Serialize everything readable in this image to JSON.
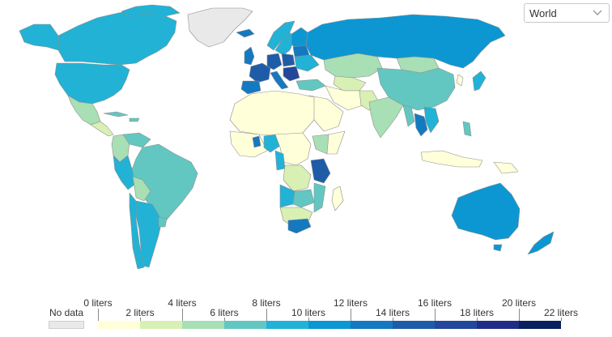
{
  "region_select": {
    "value": "World"
  },
  "legend": {
    "no_data_label": "No data",
    "bins_top": [
      "0 liters",
      "4 liters",
      "8 liters",
      "12 liters",
      "16 liters",
      "20 liters"
    ],
    "bins_bottom": [
      "2 liters",
      "6 liters",
      "10 liters",
      "14 liters",
      "18 liters",
      "22 liters"
    ],
    "colors": [
      "#ffffd9",
      "#d8f0b4",
      "#a8dfb4",
      "#62c7c0",
      "#22b2d6",
      "#0c97d3",
      "#1479c0",
      "#1e5ca8",
      "#22479b",
      "#202d87",
      "#08205e"
    ],
    "no_data_color": "#e9e9e9"
  },
  "colors": {
    "border": "#8f8f8f",
    "ocean": "#ffffff"
  }
}
